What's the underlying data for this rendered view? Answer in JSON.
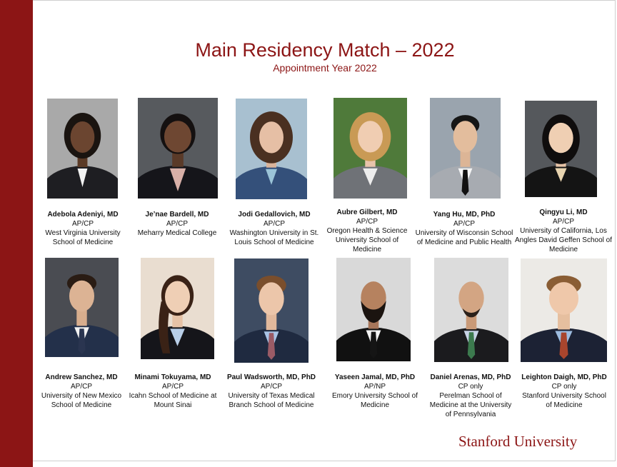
{
  "slide": {
    "title": "Main Residency Match – 2022",
    "subtitle": "Appointment Year 2022",
    "brand": "Stanford University",
    "accent_color": "#8c1515"
  },
  "people": [
    {
      "name": "Adebola Adeniyi, MD",
      "track": "AP/CP",
      "school": [
        "West Virginia University",
        "School of Medicine"
      ]
    },
    {
      "name": "Je’nae Bardell, MD",
      "track": "AP/CP",
      "school": [
        "Meharry Medical College"
      ]
    },
    {
      "name": "Jodi Gedallovich, MD",
      "track": "AP/CP",
      "school": [
        "Washington University in St.",
        "Louis School of Medicine"
      ]
    },
    {
      "name": "Aubre Gilbert, MD",
      "track": "AP/CP",
      "school": [
        "Oregon Health & Science",
        "University School of",
        "Medicine"
      ]
    },
    {
      "name": "Yang Hu, MD, PhD",
      "track": "AP/CP",
      "school": [
        "University of Wisconsin School",
        "of Medicine and Public Health"
      ]
    },
    {
      "name": "Qingyu Li, MD",
      "track": "AP/CP",
      "school": [
        "University of California, Los",
        "Angles David Geffen School of",
        "Medicine"
      ]
    },
    {
      "name": "Andrew Sanchez, MD",
      "track": "AP/CP",
      "school": [
        "University of New Mexico",
        "School of Medicine"
      ]
    },
    {
      "name": "Minami Tokuyama, MD",
      "track": "AP/CP",
      "school": [
        "Icahn School of Medicine at",
        "Mount Sinai"
      ]
    },
    {
      "name": "Paul Wadsworth, MD, PhD",
      "track": "AP/CP",
      "school": [
        "University of Texas Medical",
        "Branch School of Medicine"
      ]
    },
    {
      "name": "Yaseen Jamal, MD, PhD",
      "track": "AP/NP",
      "school": [
        "Emory University School of",
        "Medicine"
      ]
    },
    {
      "name": "Daniel Arenas, MD, PhD",
      "track": "CP only",
      "school": [
        "Perelman School of",
        "Medicine at the University",
        "of Pennsylvania"
      ]
    },
    {
      "name": "Leighton Daigh, MD, PhD",
      "track": "CP only",
      "school": [
        "Stanford University School",
        "of Medicine"
      ]
    }
  ]
}
